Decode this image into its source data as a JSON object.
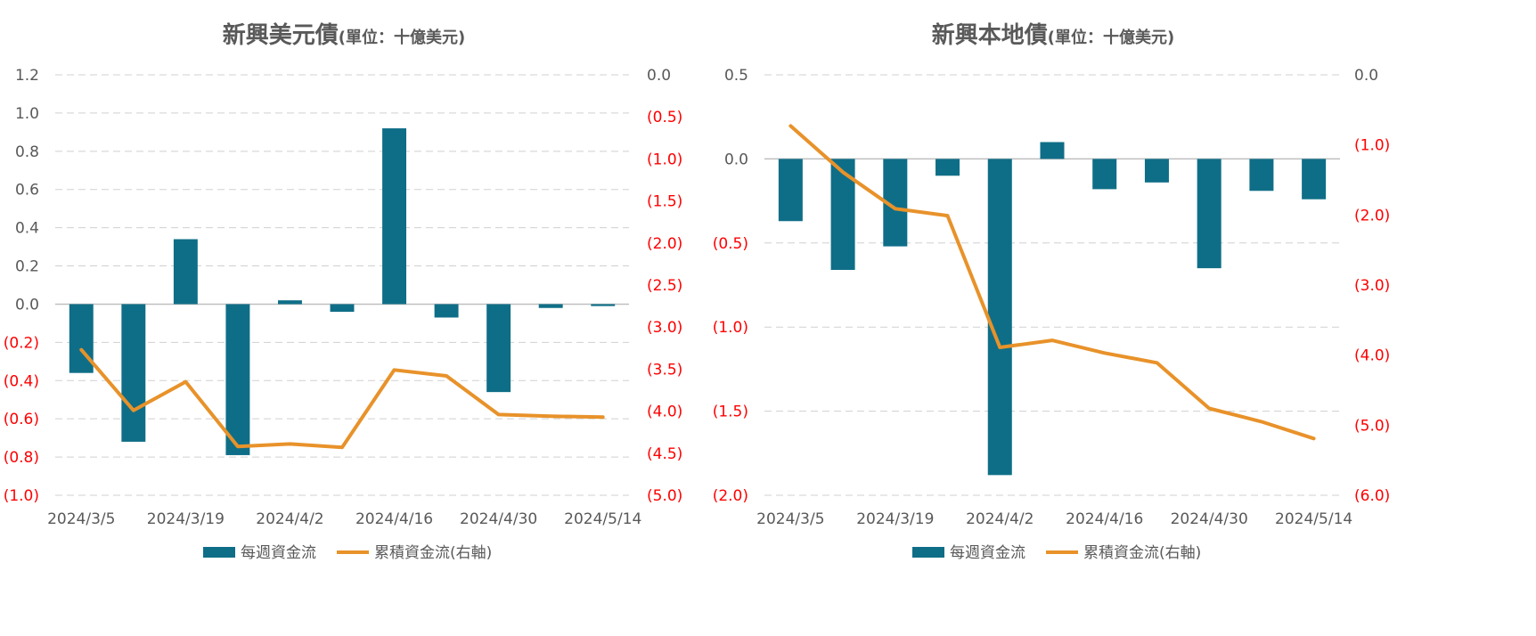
{
  "colors": {
    "bar": "#0f6e87",
    "line": "#e8922a",
    "grid": "#d0d0d0",
    "negative_tick": "#ff0000",
    "text": "#595959"
  },
  "chart_data": [
    {
      "type": "bar",
      "title": "新興美元債",
      "subtitle": "(單位：十億美元)",
      "x": [
        "2024/3/5",
        "2024/3/12",
        "2024/3/19",
        "2024/3/26",
        "2024/4/2",
        "2024/4/9",
        "2024/4/16",
        "2024/4/23",
        "2024/4/30",
        "2024/5/7",
        "2024/5/14"
      ],
      "x_tick_labels": [
        "2024/3/5",
        "2024/3/19",
        "2024/4/2",
        "2024/4/16",
        "2024/4/30",
        "2024/5/14"
      ],
      "y_left": {
        "min": -1.0,
        "max": 1.2,
        "ticks": [
          1.2,
          1.0,
          0.8,
          0.6,
          0.4,
          0.2,
          0.0,
          -0.2,
          -0.4,
          -0.6,
          -0.8,
          -1.0
        ],
        "labels": [
          "1.2",
          "1.0",
          "0.8",
          "0.6",
          "0.4",
          "0.2",
          "0.0",
          "(0.2)",
          "(0.4)",
          "(0.6)",
          "(0.8)",
          "(1.0)"
        ]
      },
      "y_right": {
        "min": -5.0,
        "max": 0.0,
        "ticks": [
          0.0,
          -0.5,
          -1.0,
          -1.5,
          -2.0,
          -2.5,
          -3.0,
          -3.5,
          -4.0,
          -4.5,
          -5.0
        ],
        "labels": [
          "0.0",
          "(0.5)",
          "(1.0)",
          "(1.5)",
          "(2.0)",
          "(2.5)",
          "(3.0)",
          "(3.5)",
          "(4.0)",
          "(4.5)",
          "(5.0)"
        ]
      },
      "series": [
        {
          "name": "每週資金流",
          "type": "bar",
          "axis": "left",
          "values": [
            -0.36,
            -0.72,
            0.34,
            -0.79,
            0.02,
            -0.04,
            0.92,
            -0.07,
            -0.46,
            -0.02,
            -0.01
          ]
        },
        {
          "name": "累積資金流(右軸)",
          "type": "line",
          "axis": "right",
          "values": [
            -3.27,
            -3.99,
            -3.65,
            -4.42,
            -4.39,
            -4.43,
            -3.51,
            -3.58,
            -4.04,
            -4.06,
            -4.07
          ]
        }
      ],
      "legend": "bottom"
    },
    {
      "type": "bar",
      "title": "新興本地債",
      "subtitle": "(單位：十億美元)",
      "x": [
        "2024/3/5",
        "2024/3/12",
        "2024/3/19",
        "2024/3/26",
        "2024/4/2",
        "2024/4/9",
        "2024/4/16",
        "2024/4/23",
        "2024/4/30",
        "2024/5/7",
        "2024/5/14"
      ],
      "x_tick_labels": [
        "2024/3/5",
        "2024/3/19",
        "2024/4/2",
        "2024/4/16",
        "2024/4/30",
        "2024/5/14"
      ],
      "y_left": {
        "min": -2.0,
        "max": 0.5,
        "ticks": [
          0.5,
          0.0,
          -0.5,
          -1.0,
          -1.5,
          -2.0
        ],
        "labels": [
          "0.5",
          "0.0",
          "(0.5)",
          "(1.0)",
          "(1.5)",
          "(2.0)"
        ]
      },
      "y_right": {
        "min": -6.0,
        "max": 0.0,
        "ticks": [
          0.0,
          -1.0,
          -2.0,
          -3.0,
          -4.0,
          -5.0,
          -6.0
        ],
        "labels": [
          "0.0",
          "(1.0)",
          "(2.0)",
          "(3.0)",
          "(4.0)",
          "(5.0)",
          "(6.0)"
        ]
      },
      "series": [
        {
          "name": "每週資金流",
          "type": "bar",
          "axis": "left",
          "values": [
            -0.37,
            -0.66,
            -0.52,
            -0.1,
            -1.88,
            0.1,
            -0.18,
            -0.14,
            -0.65,
            -0.19,
            -0.24
          ]
        },
        {
          "name": "累積資金流(右軸)",
          "type": "line",
          "axis": "right",
          "values": [
            -0.73,
            -1.39,
            -1.91,
            -2.01,
            -3.89,
            -3.79,
            -3.97,
            -4.11,
            -4.76,
            -4.95,
            -5.19
          ]
        }
      ],
      "legend": "bottom"
    }
  ]
}
